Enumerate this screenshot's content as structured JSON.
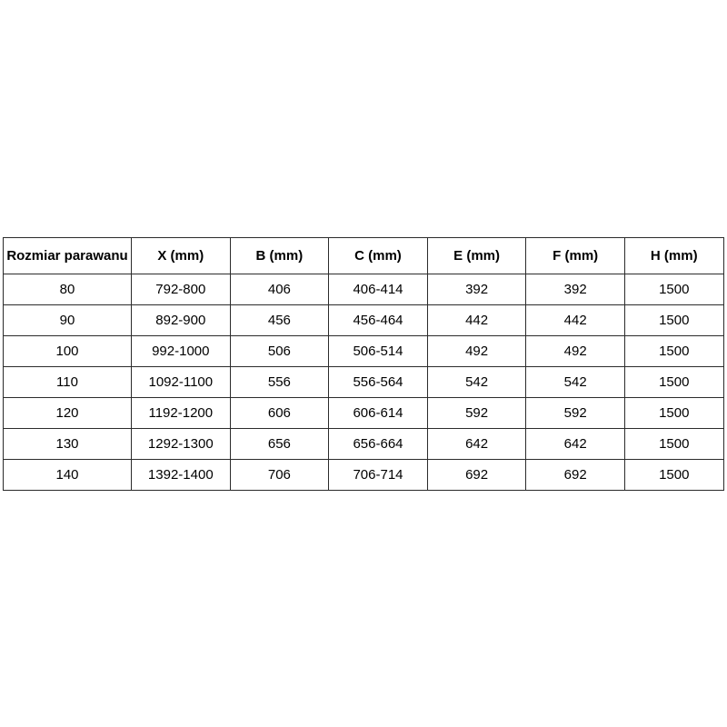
{
  "table": {
    "headers": [
      "Rozmiar parawanu",
      "X (mm)",
      "B (mm)",
      "C (mm)",
      "E (mm)",
      "F (mm)",
      "H (mm)"
    ],
    "rows": [
      [
        "80",
        "792-800",
        "406",
        "406-414",
        "392",
        "392",
        "1500"
      ],
      [
        "90",
        "892-900",
        "456",
        "456-464",
        "442",
        "442",
        "1500"
      ],
      [
        "100",
        "992-1000",
        "506",
        "506-514",
        "492",
        "492",
        "1500"
      ],
      [
        "110",
        "1092-1100",
        "556",
        "556-564",
        "542",
        "542",
        "1500"
      ],
      [
        "120",
        "1192-1200",
        "606",
        "606-614",
        "592",
        "592",
        "1500"
      ],
      [
        "130",
        "1292-1300",
        "656",
        "656-664",
        "642",
        "642",
        "1500"
      ],
      [
        "140",
        "1392-1400",
        "706",
        "706-714",
        "692",
        "692",
        "1500"
      ]
    ],
    "colors": {
      "border": "#2b2b2b",
      "text": "#000000",
      "background": "#ffffff"
    }
  }
}
